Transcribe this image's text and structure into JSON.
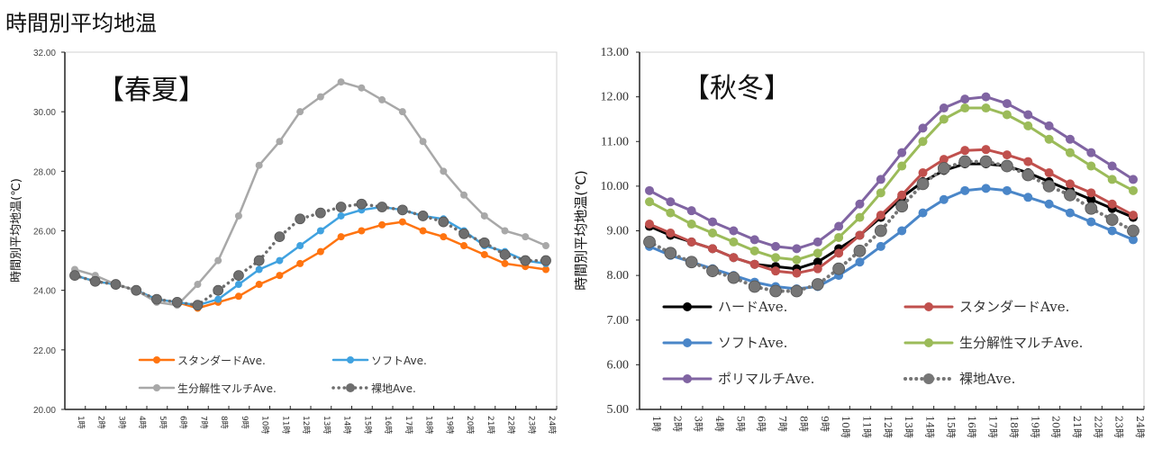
{
  "page": {
    "title": "時間別平均地温"
  },
  "chart_data": [
    {
      "type": "line",
      "title": "【春夏】",
      "xlabel": "",
      "ylabel": "時間別平均地温(℃)",
      "ylim": [
        20,
        32
      ],
      "yticks": [
        "20.00",
        "22.00",
        "24.00",
        "26.00",
        "28.00",
        "30.00",
        "32.00"
      ],
      "grid": false,
      "legend_position": "bottom-center",
      "categories": [
        "1時",
        "2時",
        "3時",
        "4時",
        "5時",
        "6時",
        "7時",
        "8時",
        "9時",
        "10時",
        "11時",
        "12時",
        "13時",
        "14時",
        "15時",
        "16時",
        "17時",
        "18時",
        "19時",
        "20時",
        "21時",
        "22時",
        "23時",
        "24時"
      ],
      "series": [
        {
          "name": "スタンダードAve.",
          "color": "#FF7410",
          "style": "solid",
          "values": [
            24.5,
            24.3,
            24.2,
            24.0,
            23.7,
            23.6,
            23.4,
            23.6,
            23.8,
            24.2,
            24.5,
            24.9,
            25.3,
            25.8,
            26.0,
            26.2,
            26.3,
            26.0,
            25.8,
            25.5,
            25.2,
            24.9,
            24.8,
            24.7
          ]
        },
        {
          "name": "ソフトAve.",
          "color": "#40A2E0",
          "style": "solid",
          "values": [
            24.5,
            24.3,
            24.2,
            24.0,
            23.7,
            23.6,
            23.5,
            23.7,
            24.2,
            24.7,
            25.0,
            25.5,
            26.0,
            26.5,
            26.7,
            26.8,
            26.7,
            26.5,
            26.4,
            26.0,
            25.5,
            25.3,
            25.0,
            24.9
          ]
        },
        {
          "name": "生分解性マルチAve.",
          "color": "#A8A8A8",
          "style": "solid",
          "values": [
            24.7,
            24.5,
            24.2,
            24.0,
            23.6,
            23.5,
            24.2,
            25.0,
            26.5,
            28.2,
            29.0,
            30.0,
            30.5,
            31.0,
            30.8,
            30.4,
            30.0,
            29.0,
            28.0,
            27.2,
            26.5,
            26.0,
            25.8,
            25.5
          ]
        },
        {
          "name": "裸地Ave.",
          "color": "#6E6E6E",
          "style": "dotted",
          "values": [
            24.5,
            24.3,
            24.2,
            24.0,
            23.7,
            23.6,
            23.5,
            24.0,
            24.5,
            25.0,
            25.8,
            26.4,
            26.6,
            26.8,
            26.9,
            26.8,
            26.7,
            26.5,
            26.3,
            25.9,
            25.6,
            25.2,
            25.0,
            25.0
          ]
        }
      ]
    },
    {
      "type": "line",
      "title": "【秋冬】",
      "xlabel": "",
      "ylabel": "時間別平均地温(℃)",
      "ylim": [
        5,
        13
      ],
      "yticks": [
        "5.00",
        "6.00",
        "7.00",
        "8.00",
        "9.00",
        "10.00",
        "11.00",
        "12.00",
        "13.00"
      ],
      "grid": false,
      "legend_position": "bottom-center",
      "categories": [
        "1時",
        "2時",
        "3時",
        "4時",
        "5時",
        "6時",
        "7時",
        "8時",
        "9時",
        "10時",
        "11時",
        "12時",
        "13時",
        "14時",
        "15時",
        "16時",
        "17時",
        "18時",
        "19時",
        "20時",
        "21時",
        "22時",
        "23時",
        "24時"
      ],
      "series": [
        {
          "name": "ハードAve.",
          "color": "#000000",
          "style": "solid",
          "values": [
            9.1,
            8.9,
            8.75,
            8.6,
            8.4,
            8.25,
            8.2,
            8.15,
            8.3,
            8.6,
            8.9,
            9.3,
            9.75,
            10.1,
            10.35,
            10.5,
            10.5,
            10.45,
            10.3,
            10.1,
            9.9,
            9.7,
            9.5,
            9.3
          ]
        },
        {
          "name": "スタンダードAve.",
          "color": "#C0504D",
          "style": "solid",
          "values": [
            9.15,
            8.95,
            8.75,
            8.6,
            8.4,
            8.25,
            8.1,
            8.05,
            8.15,
            8.5,
            8.9,
            9.35,
            9.8,
            10.3,
            10.6,
            10.8,
            10.82,
            10.7,
            10.55,
            10.3,
            10.05,
            9.85,
            9.6,
            9.35
          ]
        },
        {
          "name": "ソフトAve.",
          "color": "#4A86C8",
          "style": "solid",
          "values": [
            8.65,
            8.45,
            8.3,
            8.15,
            8.0,
            7.85,
            7.75,
            7.7,
            7.75,
            8.0,
            8.3,
            8.65,
            9.0,
            9.4,
            9.7,
            9.9,
            9.95,
            9.9,
            9.75,
            9.6,
            9.4,
            9.2,
            9.0,
            8.8
          ]
        },
        {
          "name": "生分解性マルチAve.",
          "color": "#9BBB59",
          "style": "solid",
          "values": [
            9.65,
            9.4,
            9.15,
            8.95,
            8.75,
            8.55,
            8.4,
            8.35,
            8.5,
            8.85,
            9.3,
            9.85,
            10.45,
            11.0,
            11.5,
            11.75,
            11.75,
            11.6,
            11.35,
            11.05,
            10.75,
            10.45,
            10.15,
            9.9
          ]
        },
        {
          "name": "ポリマルチAve.",
          "color": "#8064A2",
          "style": "solid",
          "values": [
            9.9,
            9.65,
            9.45,
            9.2,
            9.0,
            8.8,
            8.65,
            8.6,
            8.75,
            9.1,
            9.6,
            10.15,
            10.75,
            11.3,
            11.75,
            11.95,
            12.0,
            11.85,
            11.6,
            11.35,
            11.05,
            10.75,
            10.45,
            10.15
          ]
        },
        {
          "name": "裸地Ave.",
          "color": "#767676",
          "style": "dotted",
          "values": [
            8.75,
            8.5,
            8.3,
            8.1,
            7.95,
            7.75,
            7.65,
            7.65,
            7.8,
            8.15,
            8.55,
            9.0,
            9.55,
            10.05,
            10.4,
            10.55,
            10.55,
            10.45,
            10.25,
            10.0,
            9.8,
            9.5,
            9.25,
            9.0
          ]
        }
      ]
    }
  ]
}
